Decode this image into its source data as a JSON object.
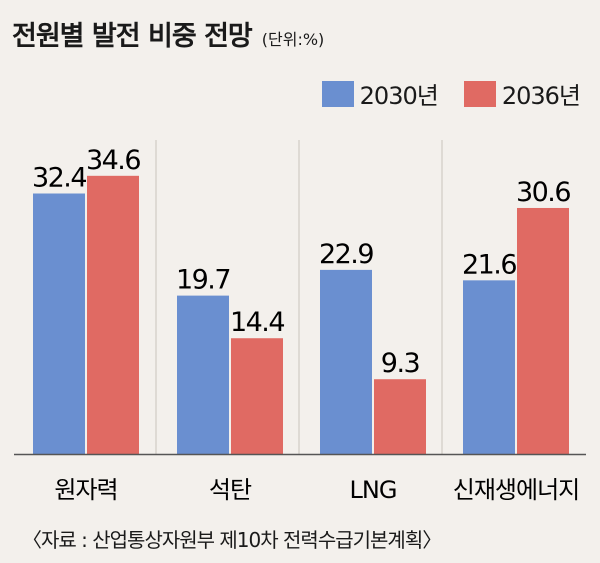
{
  "chart_data": {
    "type": "bar",
    "title": "전원별 발전 비중 전망",
    "unit": "(단위:%)",
    "categories": [
      "원자력",
      "석탄",
      "LNG",
      "신재생에너지"
    ],
    "series": [
      {
        "name": "2030년",
        "color": "#6a8fd0",
        "values": [
          32.4,
          19.7,
          22.9,
          21.6
        ]
      },
      {
        "name": "2036년",
        "color": "#e06a63",
        "values": [
          34.6,
          14.4,
          9.3,
          30.6
        ]
      }
    ],
    "ylim": [
      0,
      40
    ],
    "grid": false,
    "legend": "top-right"
  },
  "source": "〈자료 : 산업통상자원부 제10차 전력수급기본계획〉"
}
